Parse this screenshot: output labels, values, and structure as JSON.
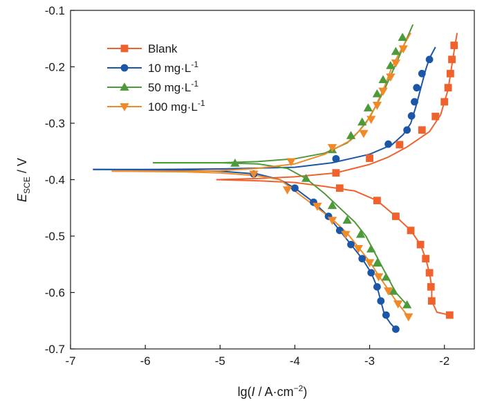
{
  "chart_data": {
    "type": "line",
    "xlabel": {
      "pre": "lg(",
      "italic": "I",
      "mid": " / A·cm",
      "sup": "−2",
      "post": ")"
    },
    "ylabel": {
      "main": "E",
      "sub": "SCE",
      "post": " / V"
    },
    "xlim": [
      -7,
      -1.6
    ],
    "ylim": [
      -0.7,
      -0.1
    ],
    "xticks": [
      -7,
      -6,
      -5,
      -4,
      -3,
      -2
    ],
    "xtick_labels": [
      "-7",
      "-6",
      "-5",
      "-4",
      "-3",
      "-2"
    ],
    "yticks": [
      -0.7,
      -0.6,
      -0.5,
      -0.4,
      -0.3,
      -0.2,
      -0.1
    ],
    "ytick_labels": [
      "-0.7",
      "-0.6",
      "-0.5",
      "-0.4",
      "-0.3",
      "-0.2",
      "-0.1"
    ],
    "grid": false,
    "legend_position": "top-left",
    "series": [
      {
        "name": "Blank",
        "legend_sup": "",
        "marker": "square",
        "color": "#f0622d",
        "anodic_line": [
          [
            -5.05,
            -0.4
          ],
          [
            -4.5,
            -0.398
          ],
          [
            -4,
            -0.395
          ],
          [
            -3.45,
            -0.388
          ],
          [
            -3,
            -0.373
          ],
          [
            -2.75,
            -0.36
          ],
          [
            -2.5,
            -0.342
          ],
          [
            -2.2,
            -0.315
          ],
          [
            -2.05,
            -0.285
          ],
          [
            -1.95,
            -0.24
          ],
          [
            -1.88,
            -0.18
          ],
          [
            -1.83,
            -0.14
          ]
        ],
        "cathodic_line": [
          [
            -5.05,
            -0.4
          ],
          [
            -4.5,
            -0.402
          ],
          [
            -4,
            -0.405
          ],
          [
            -3.6,
            -0.412
          ],
          [
            -3.2,
            -0.42
          ],
          [
            -2.9,
            -0.437
          ],
          [
            -2.65,
            -0.465
          ],
          [
            -2.45,
            -0.49
          ],
          [
            -2.32,
            -0.515
          ],
          [
            -2.25,
            -0.54
          ],
          [
            -2.2,
            -0.565
          ],
          [
            -2.17,
            -0.59
          ],
          [
            -2.17,
            -0.615
          ],
          [
            -2.1,
            -0.635
          ],
          [
            -1.93,
            -0.64
          ]
        ],
        "markers": [
          [
            -3.4,
            -0.415
          ],
          [
            -2.9,
            -0.437
          ],
          [
            -2.65,
            -0.465
          ],
          [
            -2.45,
            -0.49
          ],
          [
            -2.32,
            -0.515
          ],
          [
            -2.25,
            -0.54
          ],
          [
            -2.2,
            -0.565
          ],
          [
            -2.18,
            -0.59
          ],
          [
            -2.17,
            -0.615
          ],
          [
            -1.93,
            -0.64
          ],
          [
            -3.45,
            -0.388
          ],
          [
            -3,
            -0.362
          ],
          [
            -2.6,
            -0.338
          ],
          [
            -2.3,
            -0.312
          ],
          [
            -2.12,
            -0.288
          ],
          [
            -2.0,
            -0.262
          ],
          [
            -1.95,
            -0.237
          ],
          [
            -1.92,
            -0.212
          ],
          [
            -1.9,
            -0.187
          ],
          [
            -1.87,
            -0.162
          ]
        ]
      },
      {
        "name": "10 mg·L",
        "legend_sup": "-1",
        "marker": "circle",
        "color": "#1b56a7",
        "anodic_line": [
          [
            -6.7,
            -0.382
          ],
          [
            -6,
            -0.382
          ],
          [
            -5,
            -0.381
          ],
          [
            -4,
            -0.378
          ],
          [
            -3.5,
            -0.37
          ],
          [
            -3,
            -0.355
          ],
          [
            -2.7,
            -0.338
          ],
          [
            -2.55,
            -0.32
          ],
          [
            -2.45,
            -0.3
          ],
          [
            -2.38,
            -0.27
          ],
          [
            -2.32,
            -0.24
          ],
          [
            -2.25,
            -0.205
          ],
          [
            -2.2,
            -0.185
          ],
          [
            -2.12,
            -0.165
          ]
        ],
        "cathodic_line": [
          [
            -6.7,
            -0.382
          ],
          [
            -5.5,
            -0.383
          ],
          [
            -5,
            -0.385
          ],
          [
            -4.5,
            -0.39
          ],
          [
            -4.2,
            -0.4
          ],
          [
            -4,
            -0.415
          ],
          [
            -3.75,
            -0.44
          ],
          [
            -3.55,
            -0.465
          ],
          [
            -3.4,
            -0.49
          ],
          [
            -3.25,
            -0.515
          ],
          [
            -3.1,
            -0.54
          ],
          [
            -2.98,
            -0.565
          ],
          [
            -2.9,
            -0.59
          ],
          [
            -2.85,
            -0.615
          ],
          [
            -2.8,
            -0.64
          ],
          [
            -2.72,
            -0.655
          ],
          [
            -2.65,
            -0.665
          ]
        ],
        "markers": [
          [
            -4.55,
            -0.39
          ],
          [
            -4,
            -0.415
          ],
          [
            -3.75,
            -0.44
          ],
          [
            -3.55,
            -0.465
          ],
          [
            -3.4,
            -0.49
          ],
          [
            -3.25,
            -0.515
          ],
          [
            -3.1,
            -0.54
          ],
          [
            -2.98,
            -0.565
          ],
          [
            -2.9,
            -0.59
          ],
          [
            -2.85,
            -0.615
          ],
          [
            -2.78,
            -0.64
          ],
          [
            -2.65,
            -0.665
          ],
          [
            -3.45,
            -0.363
          ],
          [
            -2.75,
            -0.337
          ],
          [
            -2.5,
            -0.312
          ],
          [
            -2.44,
            -0.287
          ],
          [
            -2.4,
            -0.262
          ],
          [
            -2.37,
            -0.237
          ],
          [
            -2.3,
            -0.212
          ],
          [
            -2.2,
            -0.187
          ]
        ]
      },
      {
        "name": "50 mg·L",
        "legend_sup": "-1",
        "marker": "triangle-up",
        "color": "#4d9a3b",
        "anodic_line": [
          [
            -5.9,
            -0.37
          ],
          [
            -5,
            -0.37
          ],
          [
            -4.5,
            -0.368
          ],
          [
            -4,
            -0.363
          ],
          [
            -3.6,
            -0.353
          ],
          [
            -3.3,
            -0.335
          ],
          [
            -3.15,
            -0.315
          ],
          [
            -3.0,
            -0.29
          ],
          [
            -2.9,
            -0.265
          ],
          [
            -2.8,
            -0.24
          ],
          [
            -2.7,
            -0.21
          ],
          [
            -2.6,
            -0.18
          ],
          [
            -2.52,
            -0.155
          ],
          [
            -2.42,
            -0.125
          ]
        ],
        "cathodic_line": [
          [
            -5.9,
            -0.37
          ],
          [
            -5,
            -0.37
          ],
          [
            -4.5,
            -0.372
          ],
          [
            -4.1,
            -0.38
          ],
          [
            -3.85,
            -0.398
          ],
          [
            -3.6,
            -0.425
          ],
          [
            -3.4,
            -0.45
          ],
          [
            -3.2,
            -0.475
          ],
          [
            -3.05,
            -0.5
          ],
          [
            -2.95,
            -0.525
          ],
          [
            -2.85,
            -0.55
          ],
          [
            -2.75,
            -0.575
          ],
          [
            -2.65,
            -0.6
          ],
          [
            -2.5,
            -0.622
          ]
        ],
        "markers": [
          [
            -4.8,
            -0.371
          ],
          [
            -3.85,
            -0.398
          ],
          [
            -3.5,
            -0.446
          ],
          [
            -3.3,
            -0.472
          ],
          [
            -3.12,
            -0.497
          ],
          [
            -2.98,
            -0.523
          ],
          [
            -2.9,
            -0.548
          ],
          [
            -2.78,
            -0.573
          ],
          [
            -2.68,
            -0.598
          ],
          [
            -2.5,
            -0.622
          ],
          [
            -3.5,
            -0.347
          ],
          [
            -3.25,
            -0.322
          ],
          [
            -3.1,
            -0.298
          ],
          [
            -3.02,
            -0.273
          ],
          [
            -2.9,
            -0.248
          ],
          [
            -2.82,
            -0.223
          ],
          [
            -2.72,
            -0.198
          ],
          [
            -2.65,
            -0.173
          ],
          [
            -2.56,
            -0.148
          ]
        ]
      },
      {
        "name": "100 mg·L",
        "legend_sup": "-1",
        "marker": "triangle-down",
        "color": "#f08a28",
        "anodic_line": [
          [
            -6.45,
            -0.385
          ],
          [
            -5.5,
            -0.385
          ],
          [
            -5,
            -0.384
          ],
          [
            -4.5,
            -0.38
          ],
          [
            -4,
            -0.372
          ],
          [
            -3.6,
            -0.355
          ],
          [
            -3.25,
            -0.33
          ],
          [
            -3.05,
            -0.3
          ],
          [
            -2.92,
            -0.27
          ],
          [
            -2.8,
            -0.235
          ],
          [
            -2.7,
            -0.2
          ],
          [
            -2.58,
            -0.17
          ],
          [
            -2.45,
            -0.14
          ]
        ],
        "cathodic_line": [
          [
            -6.45,
            -0.385
          ],
          [
            -5.5,
            -0.386
          ],
          [
            -5,
            -0.388
          ],
          [
            -4.5,
            -0.393
          ],
          [
            -4.2,
            -0.4
          ],
          [
            -4,
            -0.42
          ],
          [
            -3.75,
            -0.445
          ],
          [
            -3.5,
            -0.47
          ],
          [
            -3.3,
            -0.495
          ],
          [
            -3.15,
            -0.52
          ],
          [
            -3.0,
            -0.545
          ],
          [
            -2.88,
            -0.57
          ],
          [
            -2.75,
            -0.595
          ],
          [
            -2.62,
            -0.62
          ],
          [
            -2.48,
            -0.643
          ]
        ],
        "markers": [
          [
            -4.55,
            -0.39
          ],
          [
            -4.1,
            -0.418
          ],
          [
            -3.7,
            -0.447
          ],
          [
            -3.5,
            -0.472
          ],
          [
            -3.32,
            -0.497
          ],
          [
            -3.15,
            -0.522
          ],
          [
            -3.0,
            -0.547
          ],
          [
            -2.88,
            -0.572
          ],
          [
            -2.75,
            -0.597
          ],
          [
            -2.62,
            -0.62
          ],
          [
            -2.48,
            -0.643
          ],
          [
            -4.05,
            -0.368
          ],
          [
            -3.5,
            -0.343
          ],
          [
            -3.08,
            -0.318
          ],
          [
            -2.98,
            -0.293
          ],
          [
            -2.9,
            -0.268
          ],
          [
            -2.82,
            -0.243
          ],
          [
            -2.72,
            -0.218
          ],
          [
            -2.65,
            -0.193
          ],
          [
            -2.55,
            -0.168
          ]
        ]
      }
    ]
  }
}
